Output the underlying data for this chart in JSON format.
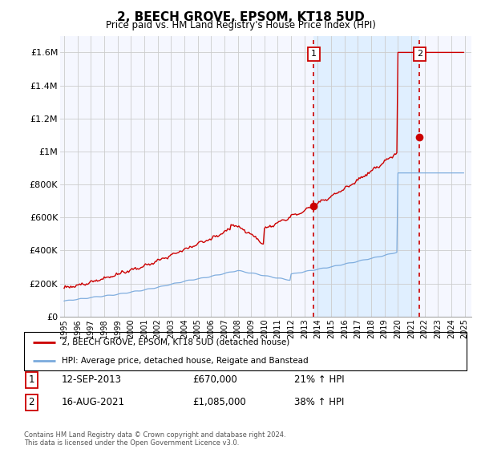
{
  "title": "2, BEECH GROVE, EPSOM, KT18 5UD",
  "subtitle": "Price paid vs. HM Land Registry's House Price Index (HPI)",
  "legend_line1": "2, BEECH GROVE, EPSOM, KT18 5UD (detached house)",
  "legend_line2": "HPI: Average price, detached house, Reigate and Banstead",
  "annotation1_label": "1",
  "annotation1_date": "12-SEP-2013",
  "annotation1_price": "£670,000",
  "annotation1_hpi": "21% ↑ HPI",
  "annotation1_year": 2013.7,
  "annotation1_value": 670000,
  "annotation2_label": "2",
  "annotation2_date": "16-AUG-2021",
  "annotation2_price": "£1,085,000",
  "annotation2_hpi": "38% ↑ HPI",
  "annotation2_year": 2021.62,
  "annotation2_value": 1085000,
  "footer": "Contains HM Land Registry data © Crown copyright and database right 2024.\nThis data is licensed under the Open Government Licence v3.0.",
  "ylim": [
    0,
    1700000
  ],
  "yticks": [
    0,
    200000,
    400000,
    600000,
    800000,
    1000000,
    1200000,
    1400000,
    1600000
  ],
  "ytick_labels": [
    "£0",
    "£200K",
    "£400K",
    "£600K",
    "£800K",
    "£1M",
    "£1.2M",
    "£1.4M",
    "£1.6M"
  ],
  "line_color_red": "#cc0000",
  "line_color_blue": "#7aaadd",
  "vline_color": "#cc0000",
  "shade_between_color": "#ddeeff",
  "grid_color": "#cccccc",
  "xmin": 1994.7,
  "xmax": 2025.5
}
